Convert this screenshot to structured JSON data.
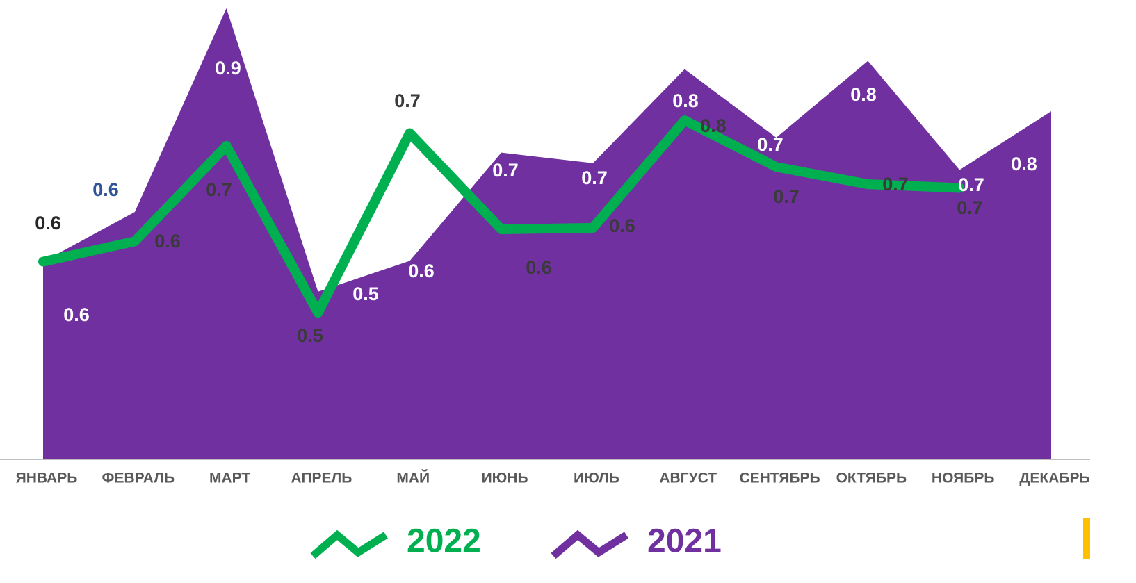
{
  "chart_data": {
    "type": "line-area",
    "categories": [
      "ЯНВАРЬ",
      "ФЕВРАЛЬ",
      "МАРТ",
      "АПРЕЛЬ",
      "МАЙ",
      "ИЮНЬ",
      "ИЮЛЬ",
      "АВГУСТ",
      "СЕНТЯБРЬ",
      "ОКТЯБРЬ",
      "НОЯБРЬ",
      "ДЕКАБРЬ"
    ],
    "series": [
      {
        "name": "2022",
        "color": "#00b050",
        "kind": "line",
        "values": [
          0.562,
          0.589,
          0.716,
          0.494,
          0.733,
          0.605,
          0.607,
          0.75,
          0.688,
          0.665,
          0.66,
          null
        ],
        "value_labels": [
          "0.6",
          "0.6",
          "0.7",
          "0.5",
          "0.7",
          "0.6",
          "0.6",
          "0.8",
          "0.7",
          "0.7",
          "0.7",
          null
        ]
      },
      {
        "name": "2021",
        "color": "#7030a0",
        "kind": "area",
        "values": [
          0.562,
          0.628,
          0.899,
          0.522,
          0.563,
          0.707,
          0.693,
          0.818,
          0.727,
          0.829,
          0.684,
          0.762
        ],
        "value_labels": [
          "0.6",
          "0.6",
          "0.9",
          "0.5",
          "0.6",
          "0.7",
          "0.7",
          "0.8",
          "0.7",
          "0.8",
          "0.7",
          "0.8"
        ]
      }
    ],
    "ylim": [
      0.3,
      0.91
    ],
    "grid": false,
    "legend": "bottom"
  }
}
